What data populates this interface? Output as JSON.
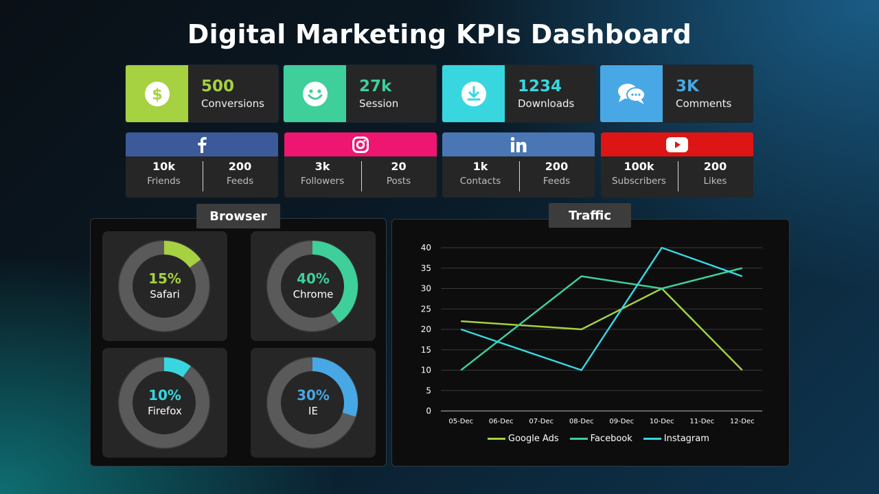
{
  "title": "Digital Marketing KPIs Dashboard",
  "colors": {
    "green": "#a6d141",
    "teal": "#3fcf9a",
    "cyan": "#38d7e0",
    "blue": "#47a8e5"
  },
  "kpis": [
    {
      "value": "500",
      "label": "Conversions",
      "icon": "dollar-icon",
      "color": "#a6d141"
    },
    {
      "value": "27k",
      "label": "Session",
      "icon": "smiley-icon",
      "color": "#3fcf9a"
    },
    {
      "value": "1234",
      "label": "Downloads",
      "icon": "download-icon",
      "color": "#38d7e0"
    },
    {
      "value": "3K",
      "label": "Comments",
      "icon": "chat-icon",
      "color": "#47a8e5"
    }
  ],
  "social": [
    {
      "icon": "facebook-icon",
      "color": "#3c5a99",
      "a_val": "10k",
      "a_lbl": "Friends",
      "b_val": "200",
      "b_lbl": "Feeds"
    },
    {
      "icon": "instagram-icon",
      "color": "#ee1671",
      "a_val": "3k",
      "a_lbl": "Followers",
      "b_val": "20",
      "b_lbl": "Posts"
    },
    {
      "icon": "linkedin-icon",
      "color": "#4a76b4",
      "a_val": "1k",
      "a_lbl": "Contacts",
      "b_val": "200",
      "b_lbl": "Feeds"
    },
    {
      "icon": "youtube-icon",
      "color": "#dd1515",
      "a_val": "100k",
      "a_lbl": "Subscribers",
      "b_val": "200",
      "b_lbl": "Likes"
    }
  ],
  "browser": {
    "title": "Browser",
    "items": [
      {
        "pct": "15%",
        "value": 15,
        "name": "Safari",
        "color": "#a6d141"
      },
      {
        "pct": "40%",
        "value": 40,
        "name": "Chrome",
        "color": "#3fcf9a"
      },
      {
        "pct": "10%",
        "value": 10,
        "name": "Firefox",
        "color": "#38d7e0"
      },
      {
        "pct": "30%",
        "value": 30,
        "name": "IE",
        "color": "#47a8e5"
      }
    ]
  },
  "traffic": {
    "title": "Traffic"
  },
  "chart_data": {
    "type": "line",
    "x": [
      "05-Dec",
      "06-Dec",
      "07-Dec",
      "08-Dec",
      "09-Dec",
      "10-Dec",
      "11-Dec",
      "12-Dec"
    ],
    "ylim": [
      0,
      40
    ],
    "yticks": [
      "0",
      "5",
      "10",
      "15",
      "20",
      "25",
      "30",
      "35",
      "40"
    ],
    "grid": true,
    "legend": "bottom",
    "series": [
      {
        "name": "Google Ads",
        "color": "#a6d141",
        "values": [
          22,
          null,
          null,
          20,
          null,
          30,
          null,
          10
        ]
      },
      {
        "name": "Facebook",
        "color": "#3fcf9a",
        "values": [
          10,
          null,
          null,
          33,
          null,
          30,
          null,
          35
        ]
      },
      {
        "name": "Instagram",
        "color": "#38d7e0",
        "values": [
          20,
          null,
          null,
          10,
          null,
          40,
          null,
          33
        ]
      }
    ]
  }
}
